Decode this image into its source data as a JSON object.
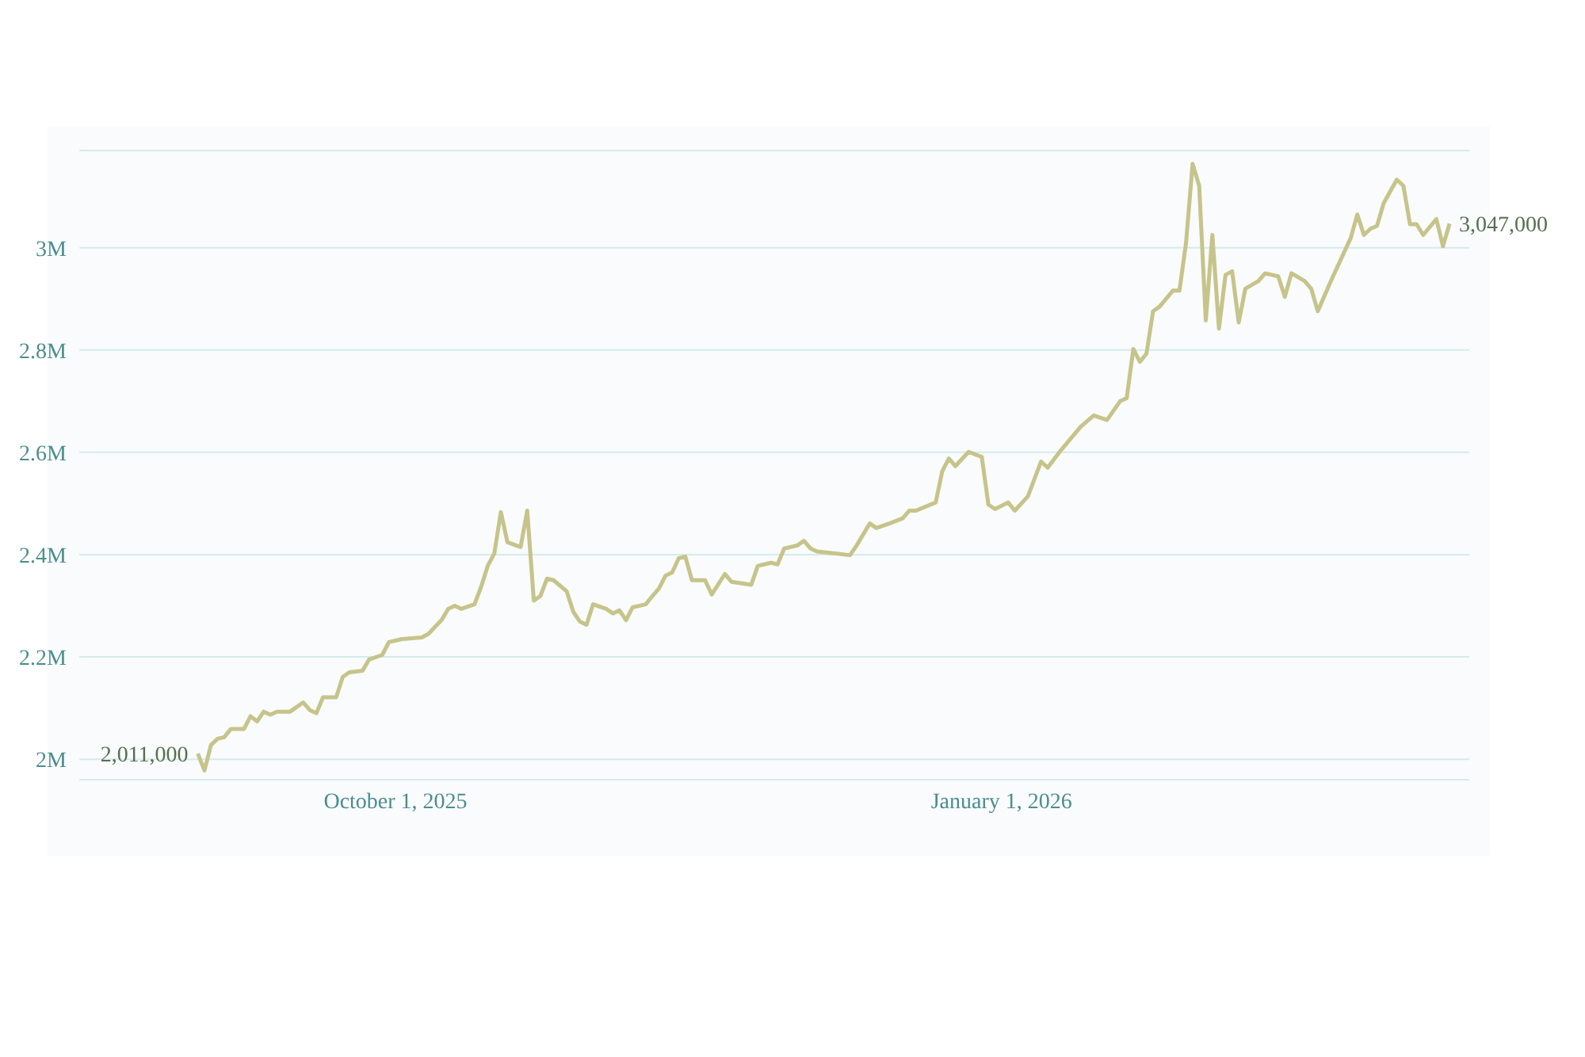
{
  "chart_data": {
    "type": "line",
    "x": [
      "2025-09-01",
      "2025-09-02",
      "2025-09-03",
      "2025-09-04",
      "2025-09-05",
      "2025-09-06",
      "2025-09-08",
      "2025-09-09",
      "2025-09-10",
      "2025-09-11",
      "2025-09-12",
      "2025-09-13",
      "2025-09-15",
      "2025-09-17",
      "2025-09-18",
      "2025-09-19",
      "2025-09-20",
      "2025-09-22",
      "2025-09-23",
      "2025-09-24",
      "2025-09-26",
      "2025-09-27",
      "2025-09-29",
      "2025-09-30",
      "2025-10-02",
      "2025-10-05",
      "2025-10-06",
      "2025-10-08",
      "2025-10-09",
      "2025-10-10",
      "2025-10-11",
      "2025-10-13",
      "2025-10-14",
      "2025-10-15",
      "2025-10-16",
      "2025-10-17",
      "2025-10-18",
      "2025-10-20",
      "2025-10-21",
      "2025-10-22",
      "2025-10-23",
      "2025-10-24",
      "2025-10-25",
      "2025-10-27",
      "2025-10-28",
      "2025-10-29",
      "2025-10-30",
      "2025-10-31",
      "2025-11-02",
      "2025-11-03",
      "2025-11-04",
      "2025-11-05",
      "2025-11-06",
      "2025-11-08",
      "2025-11-09",
      "2025-11-10",
      "2025-11-11",
      "2025-11-12",
      "2025-11-13",
      "2025-11-14",
      "2025-11-15",
      "2025-11-17",
      "2025-11-18",
      "2025-11-20",
      "2025-11-21",
      "2025-11-24",
      "2025-11-25",
      "2025-11-27",
      "2025-11-28",
      "2025-11-29",
      "2025-12-01",
      "2025-12-02",
      "2025-12-03",
      "2025-12-04",
      "2025-12-07",
      "2025-12-09",
      "2025-12-10",
      "2025-12-12",
      "2025-12-13",
      "2025-12-15",
      "2025-12-17",
      "2025-12-18",
      "2025-12-19",
      "2025-12-22",
      "2025-12-23",
      "2025-12-24",
      "2025-12-25",
      "2025-12-27",
      "2025-12-29",
      "2025-12-30",
      "2025-12-31",
      "2026-01-02",
      "2026-01-03",
      "2026-01-05",
      "2026-01-07",
      "2026-01-08",
      "2026-01-10",
      "2026-01-13",
      "2026-01-15",
      "2026-01-17",
      "2026-01-19",
      "2026-01-20",
      "2026-01-21",
      "2026-01-22",
      "2026-01-23",
      "2026-01-24",
      "2026-01-25",
      "2026-01-27",
      "2026-01-28",
      "2026-01-29",
      "2026-01-30",
      "2026-01-31",
      "2026-02-01",
      "2026-02-02",
      "2026-02-03",
      "2026-02-04",
      "2026-02-05",
      "2026-02-06",
      "2026-02-07",
      "2026-02-09",
      "2026-02-10",
      "2026-02-12",
      "2026-02-13",
      "2026-02-14",
      "2026-02-16",
      "2026-02-17",
      "2026-02-18",
      "2026-02-20",
      "2026-02-23",
      "2026-02-24",
      "2026-02-25",
      "2026-02-26",
      "2026-02-27",
      "2026-02-28",
      "2026-03-02",
      "2026-03-03",
      "2026-03-04",
      "2026-03-05",
      "2026-03-06",
      "2026-03-08",
      "2026-03-09",
      "2026-03-10"
    ],
    "series": [
      {
        "color": "#c6c48a",
        "values": [
          2011000,
          1978000,
          2028000,
          2040000,
          2043000,
          2059000,
          2059000,
          2084000,
          2074000,
          2093000,
          2087000,
          2093000,
          2093000,
          2111000,
          2096000,
          2090000,
          2121000,
          2121000,
          2161000,
          2170000,
          2173000,
          2195000,
          2204000,
          2229000,
          2235000,
          2238000,
          2245000,
          2272000,
          2294000,
          2300000,
          2294000,
          2303000,
          2337000,
          2378000,
          2402000,
          2483000,
          2424000,
          2415000,
          2486000,
          2310000,
          2319000,
          2353000,
          2350000,
          2328000,
          2288000,
          2269000,
          2263000,
          2303000,
          2294000,
          2285000,
          2291000,
          2272000,
          2297000,
          2303000,
          2319000,
          2334000,
          2359000,
          2365000,
          2393000,
          2396000,
          2350000,
          2350000,
          2322000,
          2362000,
          2347000,
          2341000,
          2378000,
          2384000,
          2381000,
          2412000,
          2418000,
          2427000,
          2412000,
          2406000,
          2402000,
          2399000,
          2418000,
          2461000,
          2452000,
          2461000,
          2471000,
          2486000,
          2486000,
          2502000,
          2563000,
          2588000,
          2573000,
          2601000,
          2591000,
          2498000,
          2489000,
          2502000,
          2486000,
          2514000,
          2582000,
          2570000,
          2604000,
          2650000,
          2672000,
          2663000,
          2700000,
          2706000,
          2802000,
          2777000,
          2793000,
          2876000,
          2885000,
          2916000,
          2916000,
          3009000,
          3164000,
          3121000,
          2858000,
          3025000,
          2842000,
          2947000,
          2954000,
          2854000,
          2920000,
          2935000,
          2950000,
          2944000,
          2904000,
          2950000,
          2935000,
          2920000,
          2876000,
          2935000,
          3019000,
          3065000,
          3025000,
          3037000,
          3043000,
          3087000,
          3133000,
          3121000,
          3046000,
          3046000,
          3025000,
          3056000,
          3003000,
          3047000
        ]
      }
    ],
    "xlim": [
      "2025-08-14",
      "2026-03-13"
    ],
    "xticks": [
      {
        "value": "2025-10-01",
        "label": "October 1, 2025"
      },
      {
        "value": "2026-01-01",
        "label": "January 1, 2026"
      }
    ],
    "ylim": [
      1960000,
      3190000
    ],
    "yticks": [
      {
        "value": 2000000,
        "label": "2M"
      },
      {
        "value": 2200000,
        "label": "2.2M"
      },
      {
        "value": 2400000,
        "label": "2.4M"
      },
      {
        "value": 2600000,
        "label": "2.6M"
      },
      {
        "value": 2800000,
        "label": "2.8M"
      },
      {
        "value": 3000000,
        "label": "3M"
      }
    ],
    "grid": "y",
    "annotations": [
      {
        "text": "2,011,000",
        "x": "2025-09-01",
        "y": 2011000
      },
      {
        "text": "3,047,000",
        "x": "2026-03-10",
        "y": 3047000
      }
    ]
  }
}
